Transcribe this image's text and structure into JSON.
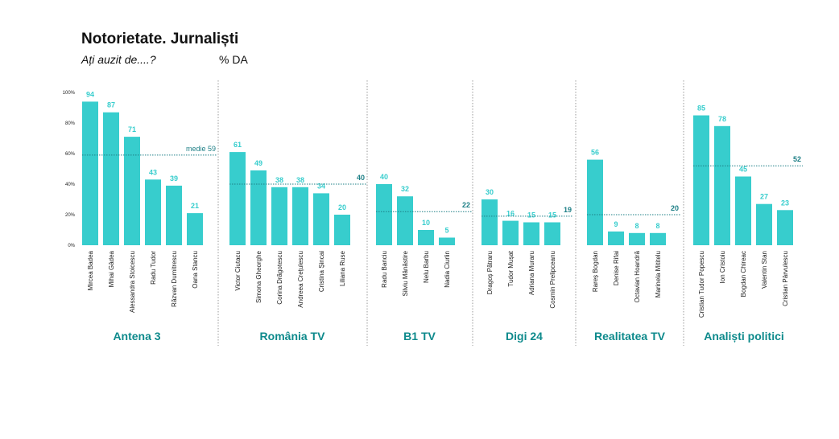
{
  "header": {
    "title": "Notorietate. Jurnaliști",
    "question": "Ați auzit de....?",
    "unit": "% DA"
  },
  "colors": {
    "bar": "#37cdcd",
    "bar_label": "#37cdcd",
    "group_label": "#0e8a8c",
    "mean_line": "#1d7f86",
    "divider": "#9a9a9a",
    "text": "#222222"
  },
  "chart_data": {
    "type": "bar",
    "title": "Notorietate. Jurnaliști",
    "ylabel": "% DA",
    "ylim": [
      0,
      100
    ],
    "yticks": [
      0,
      20,
      40,
      60,
      80,
      100
    ],
    "ytick_labels": [
      "0%",
      "20%",
      "40%",
      "60%",
      "80%",
      "100%"
    ],
    "groups": [
      {
        "name": "Antena 3",
        "mean": 59,
        "mean_label": "medie 59",
        "categories": [
          "Mircea Badea",
          "Mihai Gâdea",
          "Alessandra Stoicescu",
          "Radu Tudor",
          "Răzvan Dumitrescu",
          "Oana Stancu"
        ],
        "values": [
          94,
          87,
          71,
          43,
          39,
          21
        ]
      },
      {
        "name": "România TV",
        "mean": 40,
        "mean_label": "40",
        "categories": [
          "Victor Ciutacu",
          "Simona Gheorghe",
          "Corina Drăgotescu",
          "Andreea Crețulescu",
          "Cristina Șincai",
          "Liliana Ruse"
        ],
        "values": [
          61,
          49,
          38,
          38,
          34,
          20
        ]
      },
      {
        "name": "B1 TV",
        "mean": 22,
        "mean_label": "22",
        "categories": [
          "Radu Banciu",
          "Silviu Mănăstire",
          "Nelu Barbu",
          "Nadia Ciurlin"
        ],
        "values": [
          40,
          32,
          10,
          5
        ]
      },
      {
        "name": "Digi 24",
        "mean": 19,
        "mean_label": "19",
        "categories": [
          "Dragoș Pătraru",
          "Tudor Mușat",
          "Adriana Muraru",
          "Cosmin Prelipceanu"
        ],
        "values": [
          30,
          16,
          15,
          15
        ]
      },
      {
        "name": "Realitatea TV",
        "mean": 20,
        "mean_label": "20",
        "categories": [
          "Rareș Bogdan",
          "Denise Rifai",
          "Octavian Hoandră",
          "Marinela Mititelu"
        ],
        "values": [
          56,
          9,
          8,
          8
        ]
      },
      {
        "name": "Analiști politici",
        "mean": 52,
        "mean_label": "52",
        "categories": [
          "Cristian Tudor Popescu",
          "Ion Cristoiu",
          "Bogdan Chireac",
          "Valentin Stan",
          "Cristian Pârvulescu"
        ],
        "values": [
          85,
          78,
          45,
          27,
          23
        ]
      }
    ]
  }
}
